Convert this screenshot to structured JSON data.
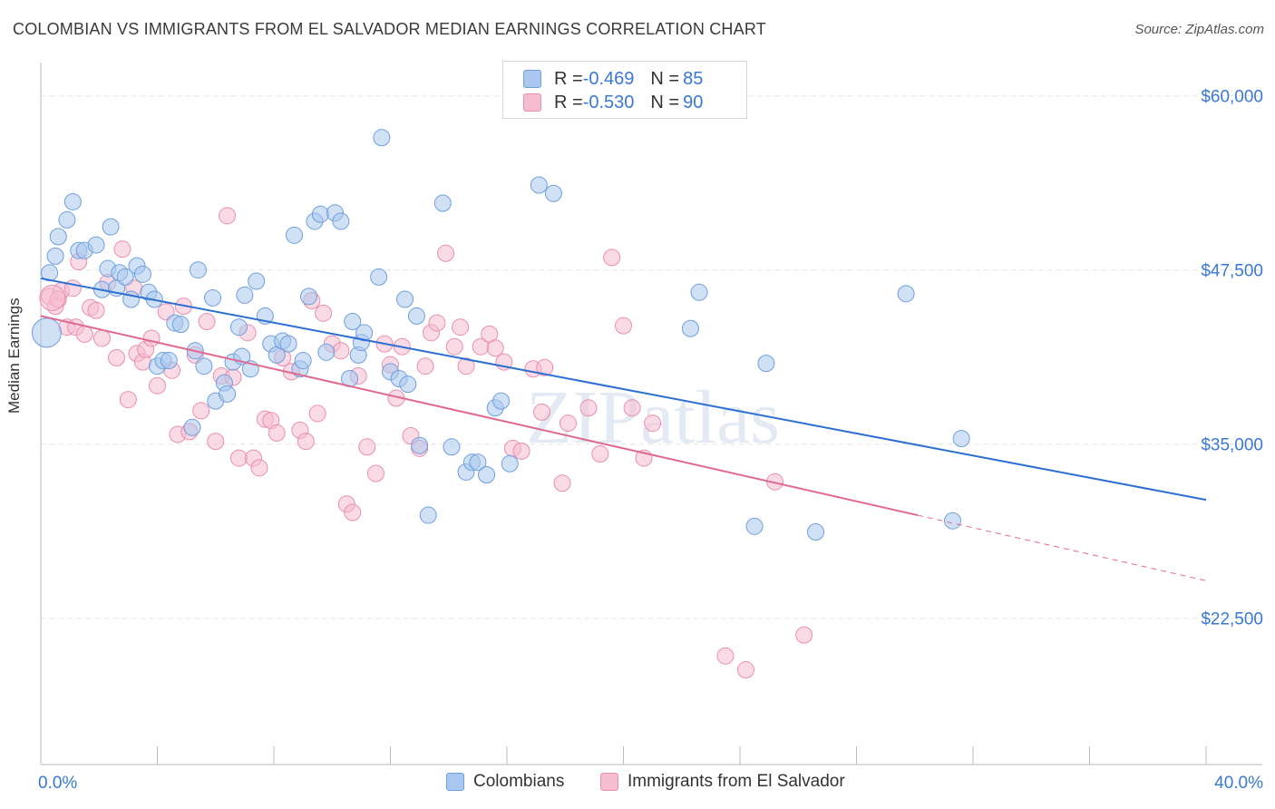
{
  "title": "COLOMBIAN VS IMMIGRANTS FROM EL SALVADOR MEDIAN EARNINGS CORRELATION CHART",
  "source": "Source: ZipAtlas.com",
  "watermark": "ZIPatlas",
  "legend": {
    "series1": {
      "r_label": "R = ",
      "r_value": "-0.469",
      "n_label": "N = ",
      "n_value": "85"
    },
    "series2": {
      "r_label": "R = ",
      "r_value": "-0.530",
      "n_label": "N = ",
      "n_value": "90"
    }
  },
  "colors": {
    "blue_fill": "#aac8ef",
    "blue_stroke": "#6f9fdc",
    "blue_line": "#2a6fd1",
    "pink_fill": "#f6bcd0",
    "pink_stroke": "#e88fb0",
    "pink_line": "#e0698f",
    "tick_label": "#3a78d6",
    "grid": "#e2e2e2"
  },
  "chart_data": {
    "type": "scatter",
    "title": "COLOMBIAN VS IMMIGRANTS FROM EL SALVADOR MEDIAN EARNINGS CORRELATION CHART",
    "xlabel": "",
    "ylabel": "Median Earnings",
    "xlim": [
      0,
      40
    ],
    "ylim": [
      12000,
      62000
    ],
    "x_tick_labels": [
      "0.0%",
      "40.0%"
    ],
    "y_ticks": [
      22500,
      35000,
      47500,
      60000
    ],
    "y_tick_labels": [
      "$22,500",
      "$35,000",
      "$47,500",
      "$60,000"
    ],
    "legend_position": "top-center",
    "series": [
      {
        "name": "Colombians",
        "r": -0.469,
        "n": 85,
        "trend": {
          "x0": 0,
          "y0": 46900,
          "x1": 40,
          "y1": 31000
        },
        "points": [
          [
            0.3,
            47300
          ],
          [
            0.5,
            48500
          ],
          [
            0.6,
            49900
          ],
          [
            0.9,
            51100
          ],
          [
            1.1,
            52400
          ],
          [
            1.3,
            48900
          ],
          [
            1.5,
            48900
          ],
          [
            1.9,
            49300
          ],
          [
            2.1,
            46100
          ],
          [
            2.3,
            47600
          ],
          [
            2.4,
            50600
          ],
          [
            2.6,
            46200
          ],
          [
            2.7,
            47300
          ],
          [
            2.9,
            47000
          ],
          [
            3.1,
            45400
          ],
          [
            3.3,
            47800
          ],
          [
            3.5,
            47200
          ],
          [
            3.7,
            45900
          ],
          [
            3.9,
            45400
          ],
          [
            4.0,
            40600
          ],
          [
            4.2,
            41000
          ],
          [
            4.4,
            41000
          ],
          [
            4.6,
            43700
          ],
          [
            4.8,
            43600
          ],
          [
            5.2,
            36200
          ],
          [
            5.3,
            41700
          ],
          [
            5.4,
            47500
          ],
          [
            5.6,
            40600
          ],
          [
            5.9,
            45500
          ],
          [
            6.0,
            38100
          ],
          [
            6.3,
            39400
          ],
          [
            6.4,
            38600
          ],
          [
            6.6,
            40900
          ],
          [
            6.8,
            43400
          ],
          [
            6.9,
            41300
          ],
          [
            7.0,
            45700
          ],
          [
            7.2,
            40400
          ],
          [
            7.4,
            46700
          ],
          [
            7.7,
            44200
          ],
          [
            7.9,
            42200
          ],
          [
            8.1,
            41400
          ],
          [
            8.3,
            42400
          ],
          [
            8.5,
            42200
          ],
          [
            8.7,
            50000
          ],
          [
            8.9,
            40400
          ],
          [
            9.0,
            41000
          ],
          [
            9.2,
            45600
          ],
          [
            9.4,
            51000
          ],
          [
            9.6,
            51500
          ],
          [
            9.8,
            41600
          ],
          [
            10.1,
            51600
          ],
          [
            10.3,
            51000
          ],
          [
            10.6,
            39700
          ],
          [
            10.7,
            43800
          ],
          [
            10.9,
            41400
          ],
          [
            11.0,
            42300
          ],
          [
            11.1,
            43000
          ],
          [
            11.6,
            47000
          ],
          [
            11.7,
            57000
          ],
          [
            12.0,
            40200
          ],
          [
            12.3,
            39700
          ],
          [
            12.5,
            45400
          ],
          [
            12.6,
            39300
          ],
          [
            12.9,
            44200
          ],
          [
            13.0,
            34900
          ],
          [
            13.3,
            29900
          ],
          [
            13.8,
            52300
          ],
          [
            14.1,
            34800
          ],
          [
            14.6,
            33000
          ],
          [
            14.8,
            33700
          ],
          [
            15.0,
            33700
          ],
          [
            15.3,
            32800
          ],
          [
            15.6,
            37600
          ],
          [
            15.8,
            38100
          ],
          [
            16.1,
            33600
          ],
          [
            17.1,
            53600
          ],
          [
            17.6,
            53000
          ],
          [
            22.3,
            43300
          ],
          [
            22.6,
            45900
          ],
          [
            24.5,
            29100
          ],
          [
            24.9,
            40800
          ],
          [
            26.6,
            28700
          ],
          [
            29.7,
            45800
          ],
          [
            31.3,
            29500
          ],
          [
            31.6,
            35400
          ]
        ]
      },
      {
        "name": "Immigrants from El Salvador",
        "r": -0.53,
        "n": 90,
        "trend": {
          "x0": 0,
          "y0": 44200,
          "x1": 30.1,
          "y1": 29900,
          "dash_x1": 40,
          "dash_y1": 25200
        },
        "points": [
          [
            0.3,
            45600
          ],
          [
            0.5,
            44900
          ],
          [
            0.7,
            46000
          ],
          [
            0.9,
            43400
          ],
          [
            1.2,
            43400
          ],
          [
            1.3,
            48100
          ],
          [
            1.5,
            42900
          ],
          [
            1.7,
            44800
          ],
          [
            1.9,
            44600
          ],
          [
            2.1,
            42600
          ],
          [
            2.3,
            46600
          ],
          [
            2.6,
            41200
          ],
          [
            2.8,
            49000
          ],
          [
            3.0,
            38200
          ],
          [
            3.2,
            46200
          ],
          [
            3.3,
            41500
          ],
          [
            3.5,
            40900
          ],
          [
            3.6,
            41800
          ],
          [
            3.8,
            42600
          ],
          [
            4.0,
            39200
          ],
          [
            4.3,
            44500
          ],
          [
            4.5,
            40300
          ],
          [
            4.7,
            35700
          ],
          [
            4.9,
            44900
          ],
          [
            5.1,
            35900
          ],
          [
            5.3,
            41400
          ],
          [
            5.5,
            37400
          ],
          [
            5.7,
            43800
          ],
          [
            6.0,
            35200
          ],
          [
            6.2,
            39900
          ],
          [
            6.4,
            51400
          ],
          [
            6.6,
            39800
          ],
          [
            6.8,
            34000
          ],
          [
            7.1,
            43000
          ],
          [
            7.3,
            34000
          ],
          [
            7.5,
            33300
          ],
          [
            7.7,
            36800
          ],
          [
            7.9,
            36700
          ],
          [
            8.1,
            35800
          ],
          [
            8.3,
            41200
          ],
          [
            8.6,
            40200
          ],
          [
            8.9,
            36000
          ],
          [
            9.1,
            35200
          ],
          [
            9.3,
            45300
          ],
          [
            9.5,
            37200
          ],
          [
            9.7,
            44400
          ],
          [
            10.0,
            42200
          ],
          [
            10.3,
            41700
          ],
          [
            10.5,
            30700
          ],
          [
            10.7,
            30100
          ],
          [
            10.9,
            39900
          ],
          [
            11.2,
            34800
          ],
          [
            11.5,
            32900
          ],
          [
            11.8,
            42200
          ],
          [
            12.0,
            40700
          ],
          [
            12.2,
            38300
          ],
          [
            12.4,
            42000
          ],
          [
            12.7,
            35600
          ],
          [
            13.0,
            34700
          ],
          [
            13.2,
            40600
          ],
          [
            13.4,
            43000
          ],
          [
            13.6,
            43700
          ],
          [
            13.9,
            48700
          ],
          [
            14.2,
            42000
          ],
          [
            14.4,
            43400
          ],
          [
            14.6,
            40600
          ],
          [
            15.1,
            42000
          ],
          [
            15.4,
            42900
          ],
          [
            15.6,
            41900
          ],
          [
            15.9,
            40900
          ],
          [
            16.2,
            34700
          ],
          [
            16.5,
            34500
          ],
          [
            16.9,
            40400
          ],
          [
            17.2,
            37300
          ],
          [
            17.3,
            40500
          ],
          [
            17.9,
            32200
          ],
          [
            18.1,
            36500
          ],
          [
            18.8,
            37600
          ],
          [
            19.2,
            34300
          ],
          [
            19.6,
            48400
          ],
          [
            20.0,
            43500
          ],
          [
            20.3,
            37600
          ],
          [
            20.7,
            34000
          ],
          [
            21.0,
            36500
          ],
          [
            23.5,
            19800
          ],
          [
            24.2,
            18800
          ],
          [
            25.2,
            32300
          ],
          [
            26.2,
            21300
          ],
          [
            0.6,
            45400
          ],
          [
            1.1,
            46200
          ]
        ]
      }
    ]
  }
}
